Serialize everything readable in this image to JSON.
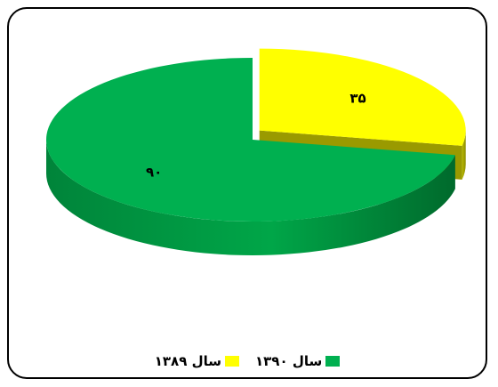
{
  "chart_data": {
    "type": "pie",
    "style": "3d",
    "categories": [
      "سال ۱۳۸۹",
      "سال ۱۳۹۰"
    ],
    "values": [
      35,
      90
    ],
    "value_labels": [
      "۳۵",
      "۹۰"
    ],
    "colors": [
      "#ffff00",
      "#00b050"
    ],
    "exploded": "سال ۱۳۸۹",
    "legend_position": "bottom",
    "title": ""
  }
}
